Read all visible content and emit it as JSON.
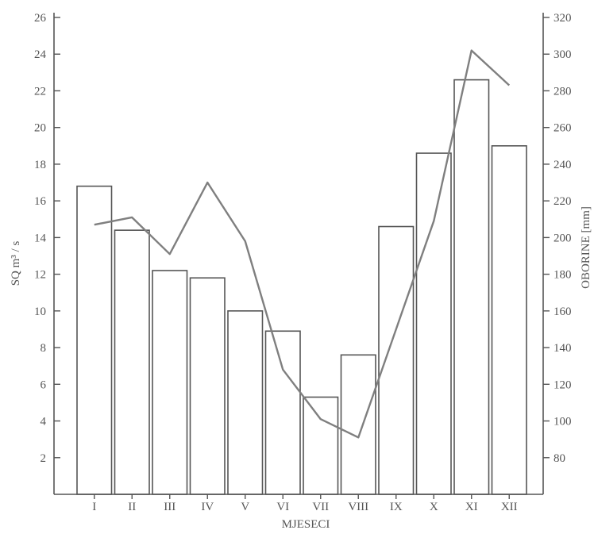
{
  "chart_data": {
    "type": "bar+line",
    "xlabel": "MJESECI",
    "categories": [
      "I",
      "II",
      "III",
      "IV",
      "V",
      "VI",
      "VII",
      "VIII",
      "IX",
      "X",
      "XI",
      "XII"
    ],
    "series": [
      {
        "axis": "left",
        "type": "bar",
        "values": [
          16.8,
          14.4,
          12.2,
          11.8,
          10.0,
          8.9,
          5.3,
          7.6,
          14.6,
          18.6,
          22.6,
          19.0
        ]
      },
      {
        "axis": "right",
        "type": "line",
        "values": [
          207,
          211,
          191,
          230,
          198,
          128,
          101,
          91,
          150,
          209,
          302,
          283
        ]
      }
    ],
    "y_left": {
      "label": "SQ m³ / s",
      "ylim": [
        0,
        26
      ],
      "ticks": [
        2,
        4,
        6,
        8,
        10,
        12,
        14,
        16,
        18,
        20,
        22,
        24,
        26
      ]
    },
    "y_right": {
      "label": "OBORINE [mm]",
      "ylim": [
        60,
        320
      ],
      "ticks": [
        80,
        100,
        120,
        140,
        160,
        180,
        200,
        220,
        240,
        260,
        280,
        300,
        320
      ]
    },
    "grid": false,
    "colors": {
      "axis": "#555555",
      "bar_fill": "#ffffff",
      "bar_stroke": "#555555",
      "line": "#7f7f7f"
    }
  }
}
